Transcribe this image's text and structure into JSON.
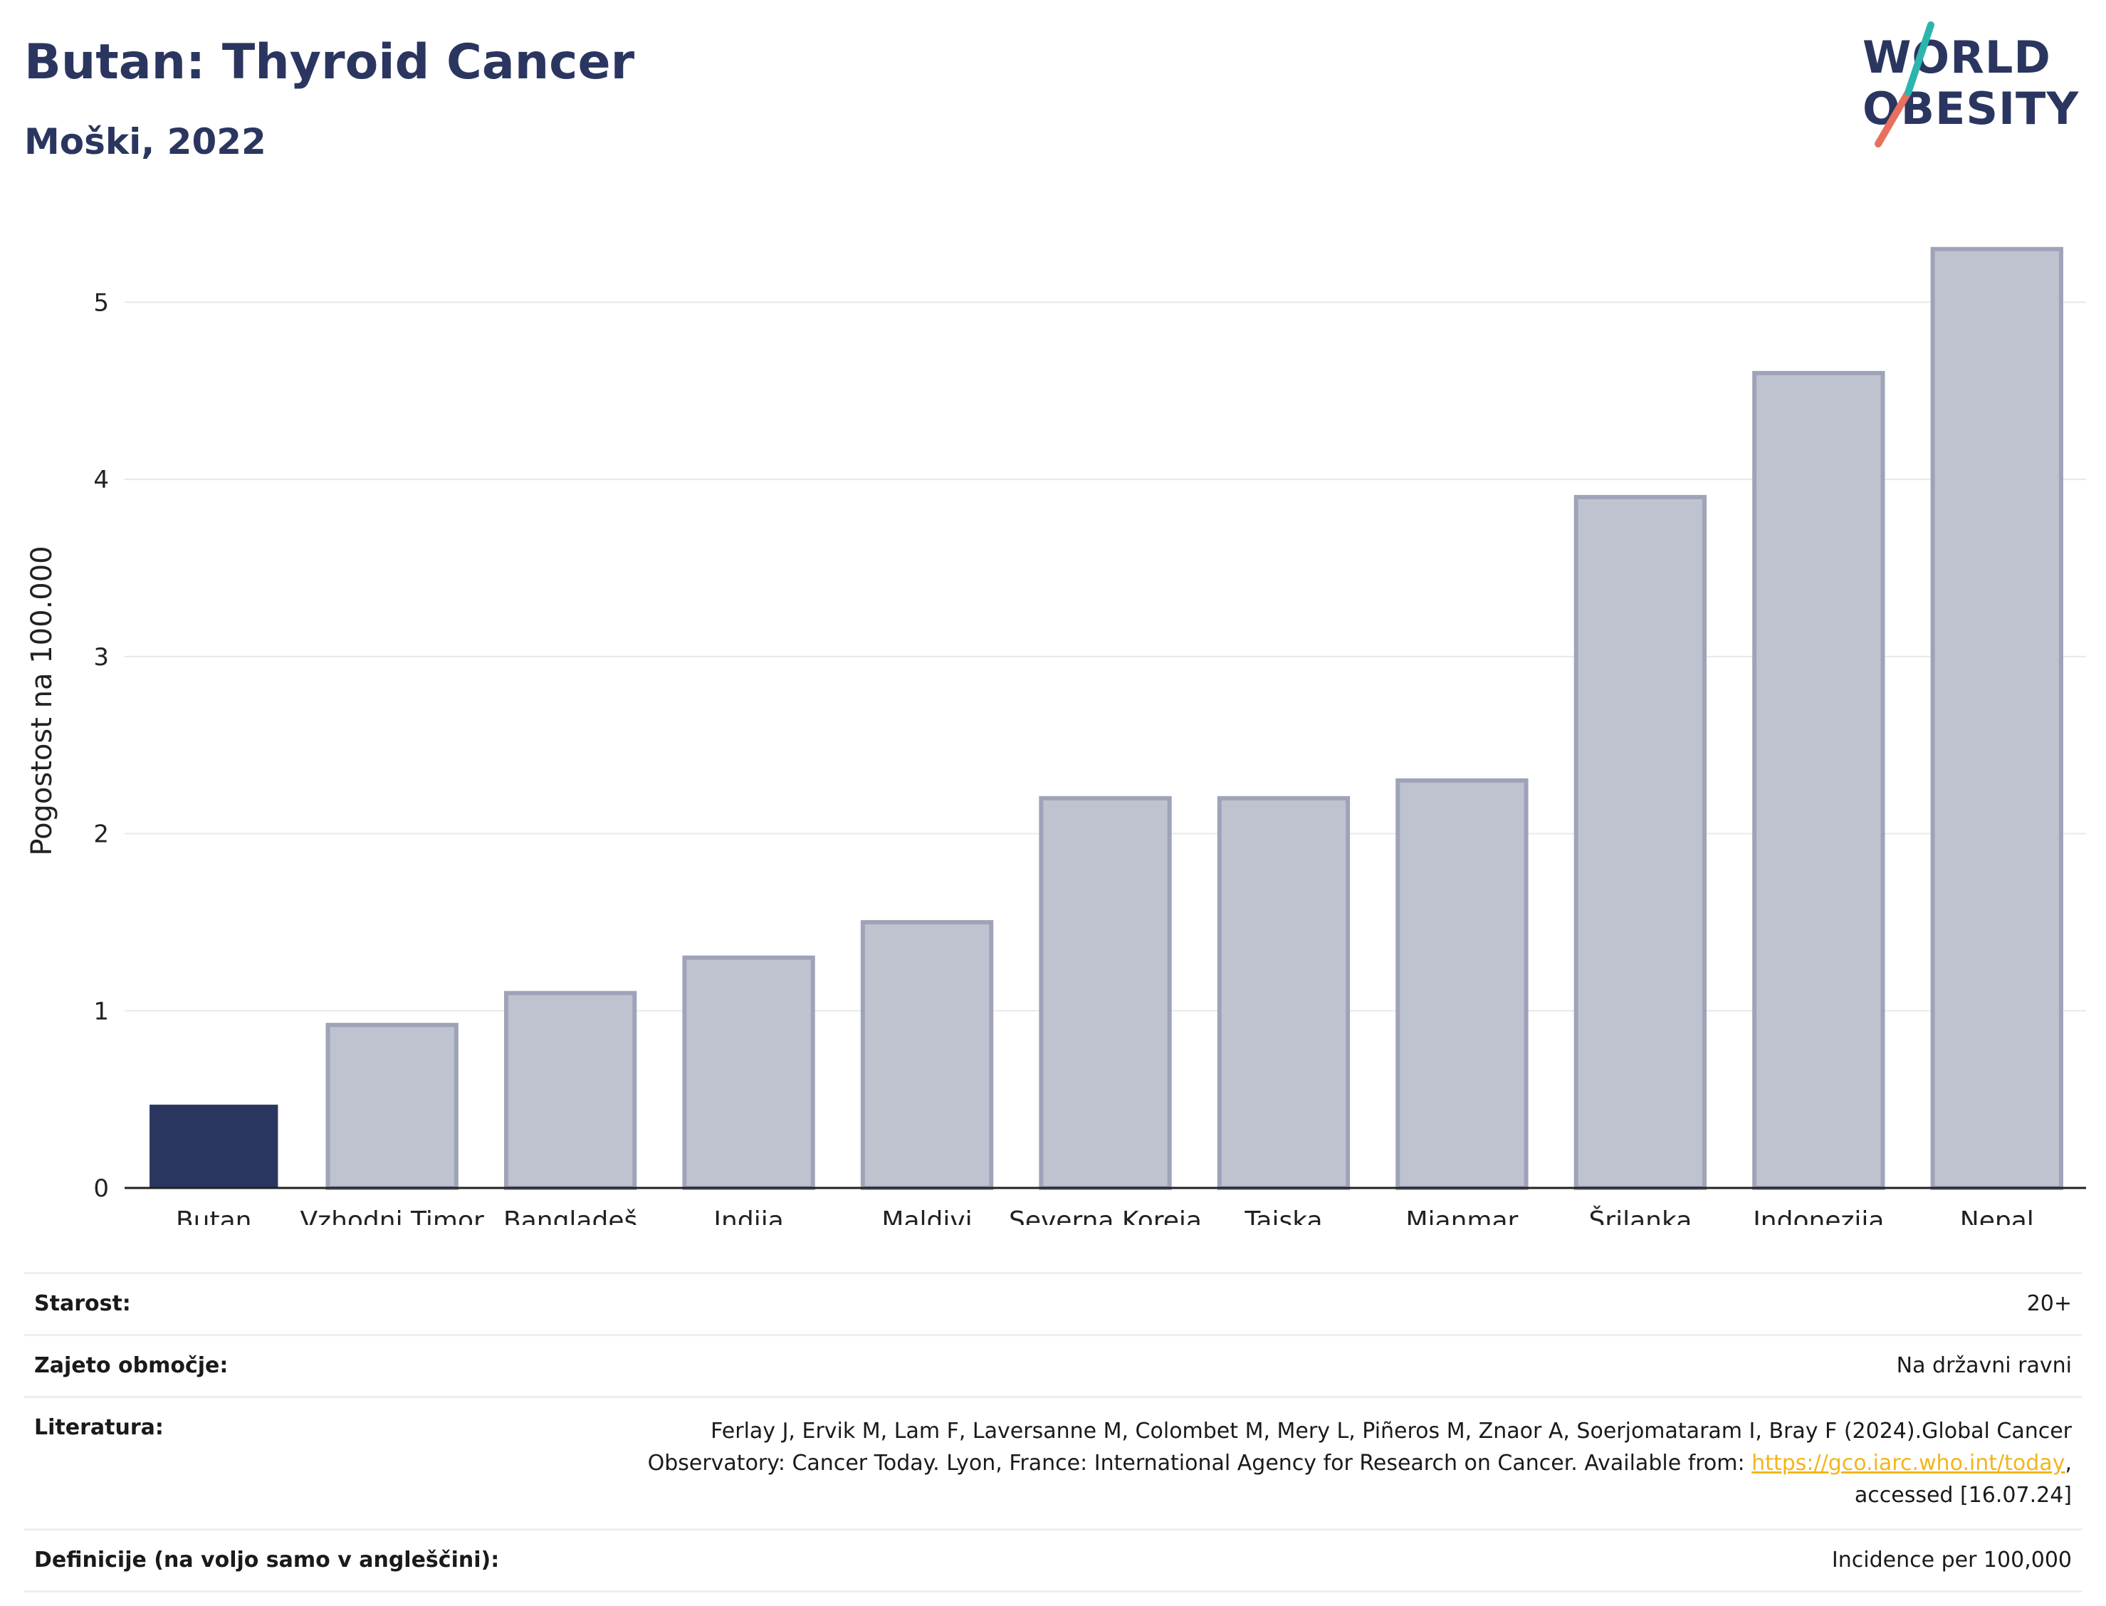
{
  "header": {
    "title": "Butan: Thyroid Cancer",
    "subtitle": "Moški, 2022"
  },
  "logo": {
    "line1": "WORLD",
    "line2": "OBESITY",
    "colors": {
      "text": "#2a365f",
      "slash_top": "#2bb5ad",
      "slash_bottom": "#e8705f"
    }
  },
  "chart_data": {
    "type": "bar",
    "categories": [
      "Butan",
      "Vzhodni Timor",
      "Bangladeš",
      "Indija",
      "Maldivi",
      "Severna Koreja",
      "Tajska",
      "Mjanmar",
      "Šrilanka",
      "Indonezija",
      "Nepal"
    ],
    "values": [
      0.47,
      0.92,
      1.1,
      1.3,
      1.5,
      2.2,
      2.2,
      2.3,
      3.9,
      4.6,
      5.3
    ],
    "highlight_index": 0,
    "ylabel": "Pogostost na 100.000",
    "ylim": [
      0,
      5.5
    ],
    "yticks": [
      0,
      1,
      2,
      3,
      4,
      5
    ],
    "grid": true,
    "colors": {
      "highlight": "#2a365f",
      "other_fill": "#bfc2cf",
      "other_stroke": "#9ea3b8",
      "grid": "#e6e8ec"
    }
  },
  "meta": {
    "rows": [
      {
        "label": "Starost:",
        "value": "20+"
      },
      {
        "label": "Zajeto območje:",
        "value": "Na državni ravni"
      },
      {
        "label": "Literatura:",
        "value_line1": "Ferlay J, Ervik M, Lam F, Laversanne M, Colombet M, Mery L, Piñeros M, Znaor A, Soerjomataram I, Bray F (2024).Global Cancer",
        "value_line2_prefix": "Observatory: Cancer Today. Lyon, France: International Agency for Research on Cancer. Available from: ",
        "link_text": "https://gco.iarc.who.int/today",
        "value_line2_suffix": ",",
        "value_line3": "accessed [16.07.24]"
      },
      {
        "label": "Definicije (na voljo samo v angleščini):",
        "value": "Incidence per 100,000"
      }
    ]
  }
}
